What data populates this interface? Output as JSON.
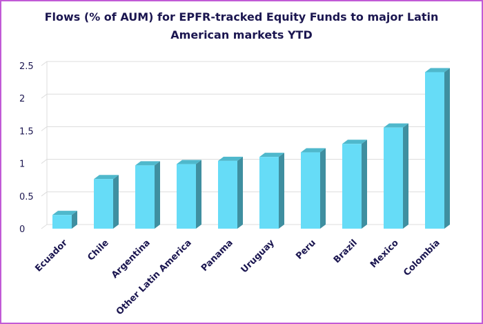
{
  "chart_data": {
    "type": "bar",
    "title": "Flows (% of AUM) for EPFR-tracked Equity Funds to major Latin American markets YTD",
    "categories": [
      "Ecuador",
      "Chile",
      "Argentina",
      "Other Latin America",
      "Panama",
      "Uruguay",
      "Peru",
      "Brazil",
      "Mexico",
      "Colombia"
    ],
    "values": [
      0.21,
      0.76,
      0.97,
      0.99,
      1.04,
      1.1,
      1.17,
      1.3,
      1.55,
      2.4
    ],
    "ylim": [
      0,
      2.5
    ],
    "yticks": [
      "0",
      "0.5",
      "1",
      "1.5",
      "2",
      "2.5"
    ],
    "grid": true,
    "legend": "none",
    "colors": {
      "bar_front": "#66dcf7",
      "bar_side": "#3f8fa0",
      "bar_top": "#4fb8cc",
      "grid": "#dcdcdc",
      "text": "#1b1650",
      "border": "#c15ad6"
    }
  }
}
